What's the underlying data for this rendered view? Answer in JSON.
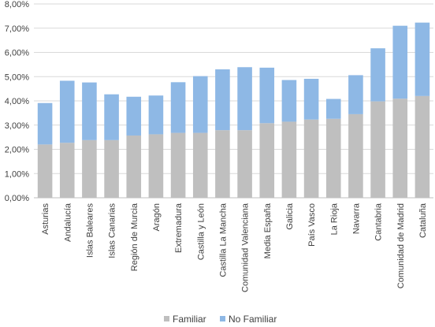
{
  "chart_data": {
    "type": "bar",
    "stacked": true,
    "title": "",
    "xlabel": "",
    "ylabel": "",
    "ylim": [
      0,
      8
    ],
    "y_tick_step": 1,
    "y_tick_labels": [
      "0,00%",
      "1,00%",
      "2,00%",
      "3,00%",
      "4,00%",
      "5,00%",
      "6,00%",
      "7,00%",
      "8,00%"
    ],
    "grid": true,
    "legend_position": "bottom",
    "categories": [
      "Asturias",
      "Andalucía",
      "Islas Baleares",
      "Islas Canarias",
      "Región de Murcia",
      "Aragón",
      "Extremadura",
      "Castilla y León",
      "Castilla La Mancha",
      "Comunidad Valenciana",
      "Media España",
      "Galicia",
      "País Vasco",
      "La Rioja",
      "Navarra",
      "Cantabria",
      "Comunidad de Madrid",
      "Cataluña"
    ],
    "series": [
      {
        "name": "Familiar",
        "color": "#bfbfbf",
        "values": [
          2.2,
          2.27,
          2.38,
          2.38,
          2.57,
          2.62,
          2.68,
          2.68,
          2.79,
          2.79,
          3.08,
          3.14,
          3.23,
          3.26,
          3.45,
          3.98,
          4.09,
          4.2
        ]
      },
      {
        "name": "No Familiar",
        "color": "#8eb8e5",
        "values": [
          1.71,
          2.56,
          2.38,
          1.89,
          1.6,
          1.6,
          2.09,
          2.34,
          2.51,
          2.6,
          2.29,
          1.72,
          1.68,
          0.82,
          1.61,
          2.19,
          3.01,
          3.03
        ]
      }
    ]
  }
}
